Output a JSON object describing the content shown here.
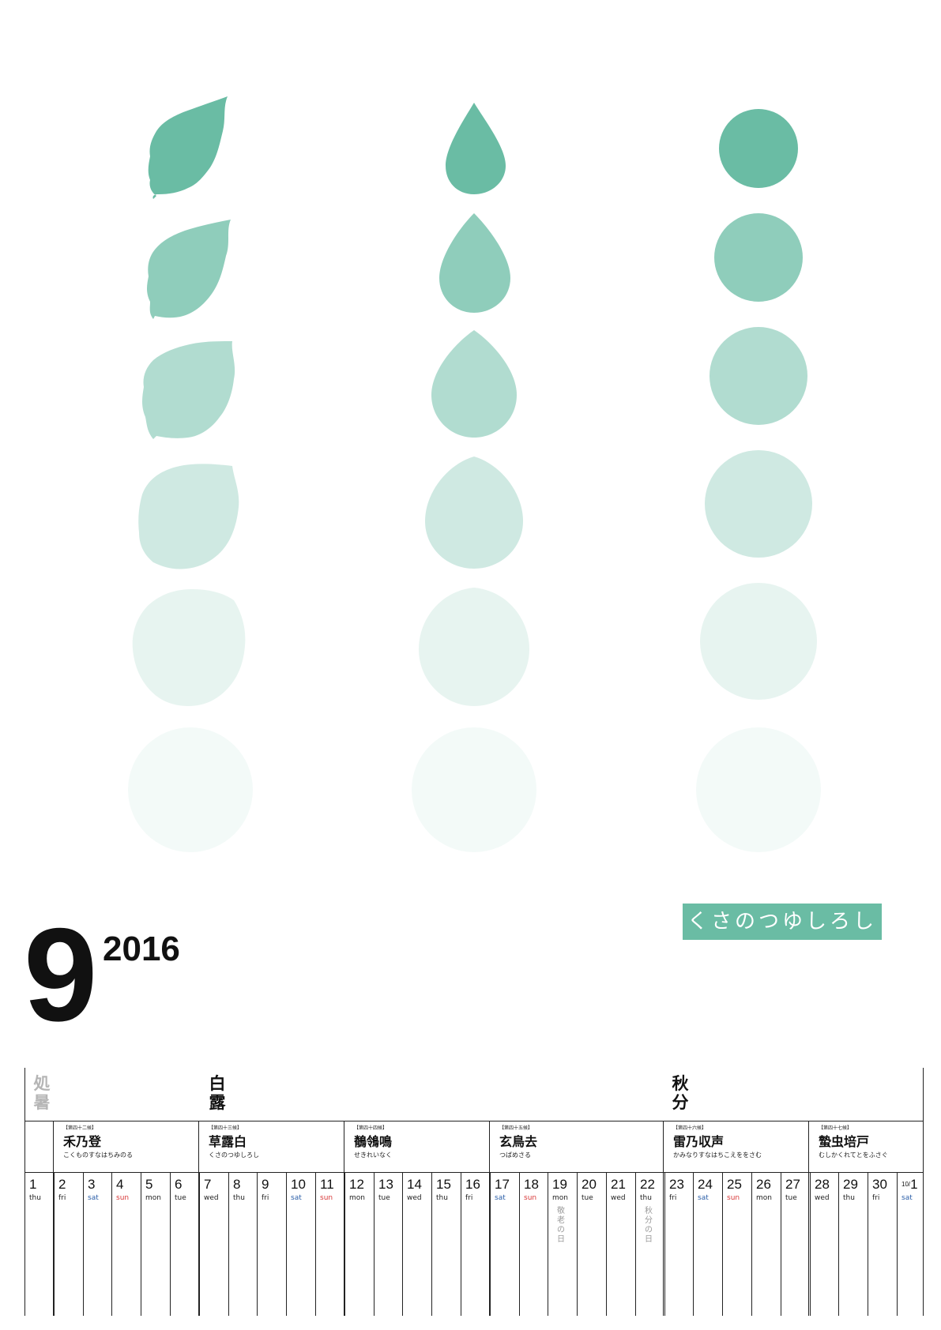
{
  "banner_text": "くさのつゆしろし",
  "month": "9",
  "year": "2016",
  "colors": {
    "accent": "#6abca4"
  },
  "sekki": [
    {
      "label": "処暑",
      "style": "muted"
    },
    {
      "label": "白露",
      "style": "normal"
    },
    {
      "label": "秋分",
      "style": "normal"
    }
  ],
  "kou": [
    {
      "num": "【第四十二候】",
      "name": "禾乃登",
      "reading": "こくものすなはちみのる"
    },
    {
      "num": "【第四十三候】",
      "name": "草露白",
      "reading": "くさのつゆしろし"
    },
    {
      "num": "【第四十四候】",
      "name": "鶺鴒鳴",
      "reading": "せきれいなく"
    },
    {
      "num": "【第四十五候】",
      "name": "玄鳥去",
      "reading": "つばめさる"
    },
    {
      "num": "【第四十六候】",
      "name": "雷乃収声",
      "reading": "かみなりすなはちこえををさむ"
    },
    {
      "num": "【第四十七候】",
      "name": "蟄虫培戸",
      "reading": "むしかくれてとをふさぐ"
    }
  ],
  "days": [
    {
      "d": "1",
      "w": "thu"
    },
    {
      "d": "2",
      "w": "fri"
    },
    {
      "d": "3",
      "w": "sat"
    },
    {
      "d": "4",
      "w": "sun"
    },
    {
      "d": "5",
      "w": "mon"
    },
    {
      "d": "6",
      "w": "tue"
    },
    {
      "d": "7",
      "w": "wed"
    },
    {
      "d": "8",
      "w": "thu"
    },
    {
      "d": "9",
      "w": "fri"
    },
    {
      "d": "10",
      "w": "sat"
    },
    {
      "d": "11",
      "w": "sun"
    },
    {
      "d": "12",
      "w": "mon"
    },
    {
      "d": "13",
      "w": "tue"
    },
    {
      "d": "14",
      "w": "wed"
    },
    {
      "d": "15",
      "w": "thu"
    },
    {
      "d": "16",
      "w": "fri"
    },
    {
      "d": "17",
      "w": "sat"
    },
    {
      "d": "18",
      "w": "sun"
    },
    {
      "d": "19",
      "w": "mon",
      "holiday": "敬老の日"
    },
    {
      "d": "20",
      "w": "tue"
    },
    {
      "d": "21",
      "w": "wed"
    },
    {
      "d": "22",
      "w": "thu",
      "holiday": "秋分の日"
    },
    {
      "d": "23",
      "w": "fri"
    },
    {
      "d": "24",
      "w": "sat"
    },
    {
      "d": "25",
      "w": "sun"
    },
    {
      "d": "26",
      "w": "mon"
    },
    {
      "d": "27",
      "w": "tue"
    },
    {
      "d": "28",
      "w": "wed"
    },
    {
      "d": "29",
      "w": "thu"
    },
    {
      "d": "30",
      "w": "fri"
    },
    {
      "d": "1",
      "prefix": "10/",
      "w": "sat"
    }
  ],
  "artwork": {
    "columns": [
      "leaf",
      "drop",
      "circle"
    ],
    "rows": 6,
    "description_levels": [
      1,
      0.75,
      0.52,
      0.32,
      0.16,
      0.08
    ]
  }
}
